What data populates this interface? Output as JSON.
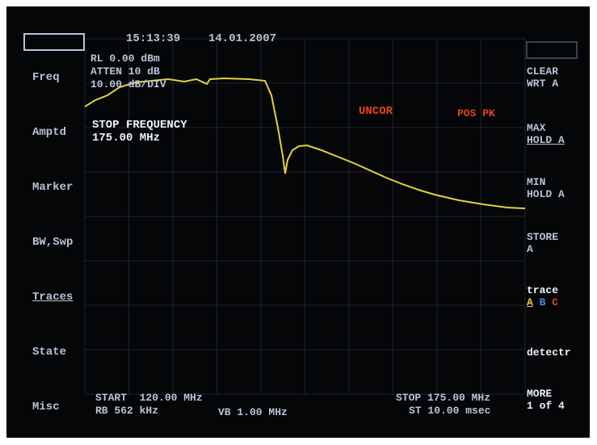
{
  "header": {
    "time": "15:13:39",
    "date": "14.01.2007"
  },
  "status": {
    "reference_level": "RL 0.00 dBm",
    "attenuation": "ATTEN 10 dB",
    "scale": "10.00 dB/DIV"
  },
  "active_function": {
    "label": "STOP FREQUENCY",
    "value": "175.00 MHz"
  },
  "indicators": {
    "correction": "UNCOR",
    "detector": "POS PK"
  },
  "left_menu": [
    "Freq",
    "Amptd",
    "Marker",
    "BW,Swp",
    "Traces",
    "State",
    "Misc"
  ],
  "right_menu": {
    "clear_write": [
      "CLEAR",
      "WRT A"
    ],
    "max_hold": [
      "MAX",
      "HOLD A"
    ],
    "min_hold": [
      "MIN",
      "HOLD A"
    ],
    "store": [
      "STORE",
      "A"
    ],
    "trace": {
      "label": "trace",
      "options": [
        "A",
        "B",
        "C"
      ]
    },
    "detector": "detectr",
    "more": [
      "MORE",
      "1 of 4"
    ]
  },
  "footer": {
    "start": "START  120.00 MHz",
    "rbw": "RB 562 kHz",
    "vbw": "VB 1.00 MHz",
    "stop": "STOP 175.00 MHz",
    "sweep_time": "ST 10.00 msec"
  }
}
